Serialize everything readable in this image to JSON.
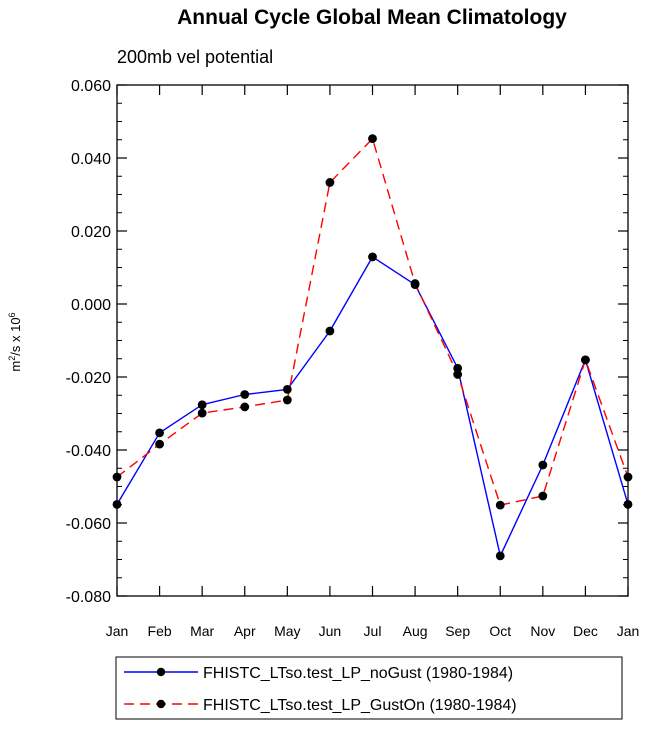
{
  "chart_data": {
    "type": "line",
    "title": "Annual Cycle Global Mean Climatology",
    "subtitle": "200mb vel potential",
    "ylabel": "m²/s x 10⁶",
    "ylabel_parts": {
      "base": "m",
      "sup1": "2",
      "mid": "/s x 10",
      "sup2": "6"
    },
    "xlabel": "",
    "categories": [
      "Jan",
      "Feb",
      "Mar",
      "Apr",
      "May",
      "Jun",
      "Jul",
      "Aug",
      "Sep",
      "Oct",
      "Nov",
      "Dec",
      "Jan"
    ],
    "ylim": [
      -0.08,
      0.06
    ],
    "yticks": [
      -0.08,
      -0.06,
      -0.04,
      -0.02,
      0.0,
      0.02,
      0.04,
      0.06
    ],
    "ytick_labels": [
      "-0.080",
      "-0.060",
      "-0.040",
      "-0.020",
      "0.000",
      "0.020",
      "0.040",
      "0.060"
    ],
    "series": [
      {
        "name": "FHISTC_LTso.test_LP_noGust (1980-1984)",
        "color": "#0000ff",
        "dash": "solid",
        "values": [
          -0.0549,
          -0.0353,
          -0.0276,
          -0.0248,
          -0.0234,
          -0.0074,
          0.0129,
          0.0053,
          -0.0176,
          -0.069,
          -0.0441,
          -0.0153,
          -0.0549
        ]
      },
      {
        "name": "FHISTC_LTso.test_LP_GustOn (1980-1984)",
        "color": "#ff0000",
        "dash": "dashed",
        "values": [
          -0.0474,
          -0.0384,
          -0.0299,
          -0.0282,
          -0.0263,
          0.0333,
          0.0453,
          0.0056,
          -0.0193,
          -0.0551,
          -0.0526,
          -0.0153,
          -0.0474
        ]
      }
    ],
    "marker_color": "#000000",
    "legend_position": "bottom"
  }
}
